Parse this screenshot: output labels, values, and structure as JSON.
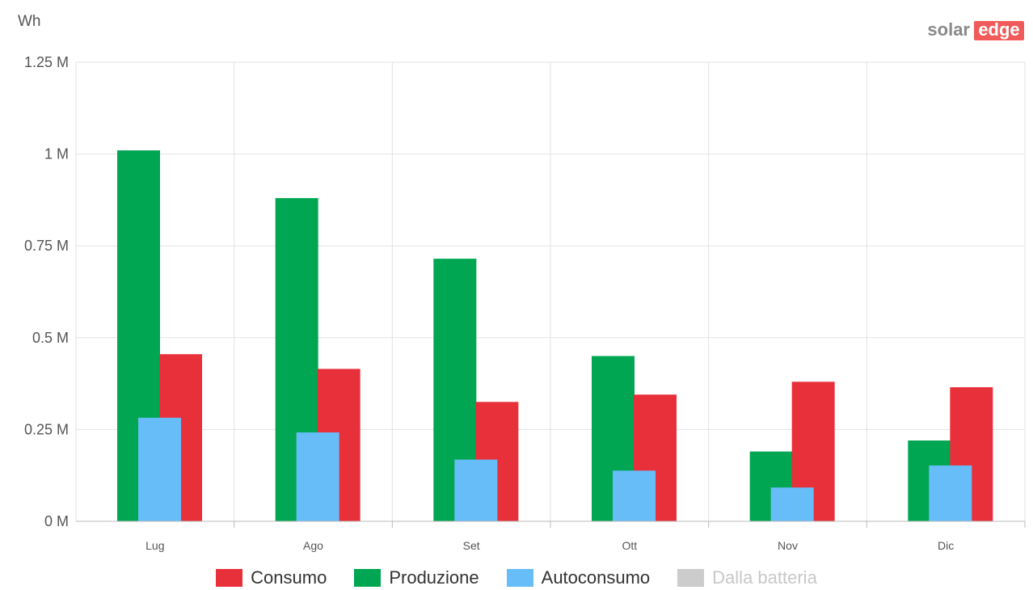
{
  "logo": {
    "part1": "solar",
    "part2": "edge",
    "accent": "#f05a5a"
  },
  "chart_data": {
    "type": "bar",
    "unit_label": "Wh",
    "categories": [
      "Lug",
      "Ago",
      "Set",
      "Ott",
      "Nov",
      "Dic"
    ],
    "ylim": [
      0,
      1250000
    ],
    "yticks": [
      {
        "value": 0,
        "label": "0 M"
      },
      {
        "value": 250000,
        "label": "0.25 M"
      },
      {
        "value": 500000,
        "label": "0.5 M"
      },
      {
        "value": 750000,
        "label": "0.75 M"
      },
      {
        "value": 1000000,
        "label": "1 M"
      },
      {
        "value": 1250000,
        "label": "1.25 M"
      }
    ],
    "grid": true,
    "legend_position": "bottom",
    "series": [
      {
        "name": "Produzione",
        "color": "#00a651",
        "values": [
          1010000,
          880000,
          715000,
          450000,
          190000,
          220000
        ]
      },
      {
        "name": "Consumo",
        "color": "#e8303a",
        "values": [
          455000,
          415000,
          325000,
          345000,
          380000,
          365000
        ]
      },
      {
        "name": "Autoconsumo",
        "color": "#66bdf8",
        "values": [
          282000,
          242000,
          168000,
          138000,
          92000,
          152000
        ]
      }
    ],
    "legend": [
      {
        "name": "Consumo",
        "color": "#e8303a",
        "active": true
      },
      {
        "name": "Produzione",
        "color": "#00a651",
        "active": true
      },
      {
        "name": "Autoconsumo",
        "color": "#66bdf8",
        "active": true
      },
      {
        "name": "Dalla batteria",
        "color": "#cccccc",
        "active": false
      }
    ]
  }
}
